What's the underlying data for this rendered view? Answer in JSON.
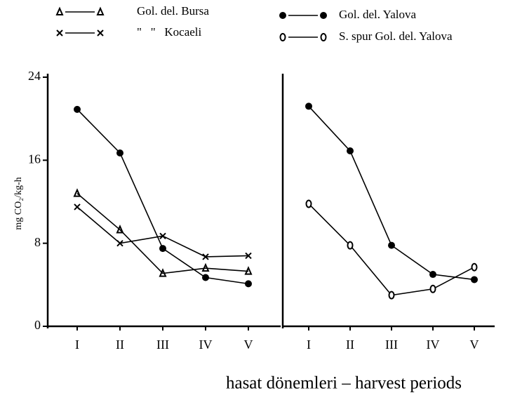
{
  "chart_data": [
    {
      "type": "line",
      "ylabel": "mg CO₂/kg-h",
      "categories": [
        "I",
        "II",
        "III",
        "IV",
        "V"
      ],
      "ylim": [
        0,
        24
      ],
      "yticks": [
        0,
        8,
        16,
        24
      ],
      "series": [
        {
          "name": "Gol. del. Bursa",
          "color": "#000000",
          "marker": "triangle",
          "values": [
            12.8,
            9.3,
            5.1,
            5.6,
            5.3
          ]
        },
        {
          "name": "\"   \"   Kocaeli",
          "color": "#000000",
          "marker": "x",
          "values": [
            11.5,
            8.0,
            8.7,
            6.7,
            6.8
          ]
        },
        {
          "name": "Gol. del. Yalova",
          "color": "#000000",
          "marker": "filled-circle",
          "values": [
            20.9,
            16.7,
            7.5,
            4.7,
            4.1
          ]
        }
      ]
    },
    {
      "type": "line",
      "xlabel": "hasat dönemleri – harvest periods",
      "categories": [
        "I",
        "II",
        "III",
        "IV",
        "V"
      ],
      "ylim": [
        0,
        24
      ],
      "series": [
        {
          "name": "Gol. del. Yalova",
          "color": "#000000",
          "marker": "filled-circle",
          "values": [
            21.2,
            16.9,
            7.8,
            5.0,
            4.5
          ]
        },
        {
          "name": "S. spur Gol. del. Yalova",
          "color": "#000000",
          "marker": "open-circle",
          "values": [
            11.8,
            7.8,
            3.0,
            3.6,
            5.7
          ]
        }
      ]
    }
  ]
}
